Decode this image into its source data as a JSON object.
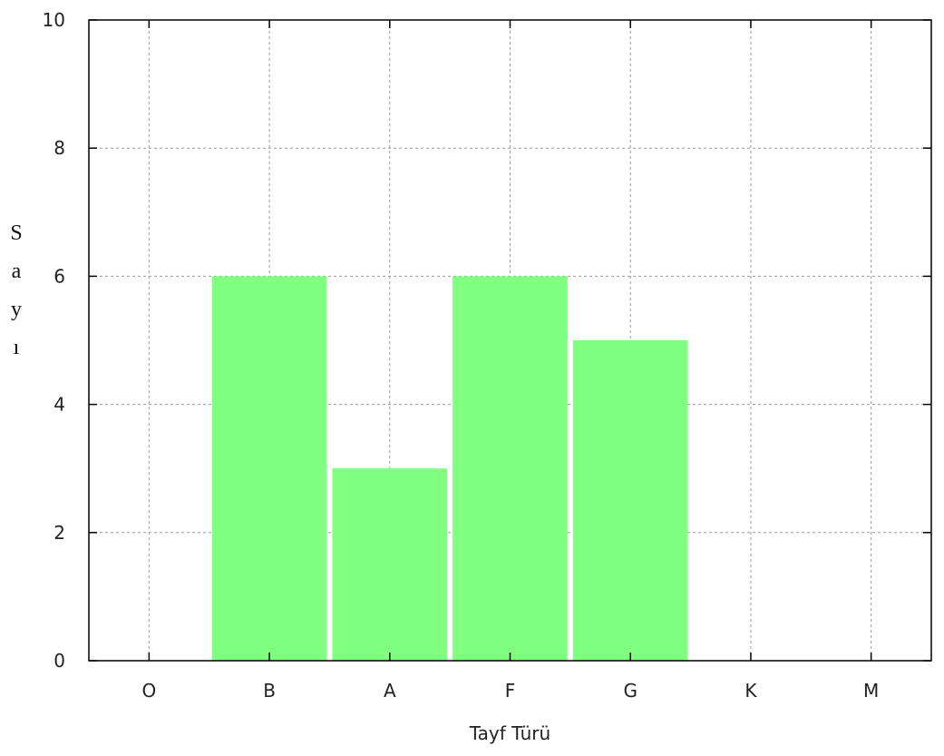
{
  "chart_data": {
    "type": "bar",
    "categories": [
      "O",
      "B",
      "A",
      "F",
      "G",
      "K",
      "M"
    ],
    "values": [
      0,
      6,
      3,
      6,
      5,
      0,
      0
    ],
    "yticks": [
      "0",
      "2",
      "4",
      "6",
      "8",
      "10"
    ],
    "xlabel": "Tayf Türü",
    "ylabel_chars": [
      "S",
      "a",
      "y",
      "ı"
    ],
    "ylim": [
      0,
      10
    ],
    "grid": true,
    "bar_color": "#80ff80",
    "grid_color": "#9a9a9a"
  }
}
